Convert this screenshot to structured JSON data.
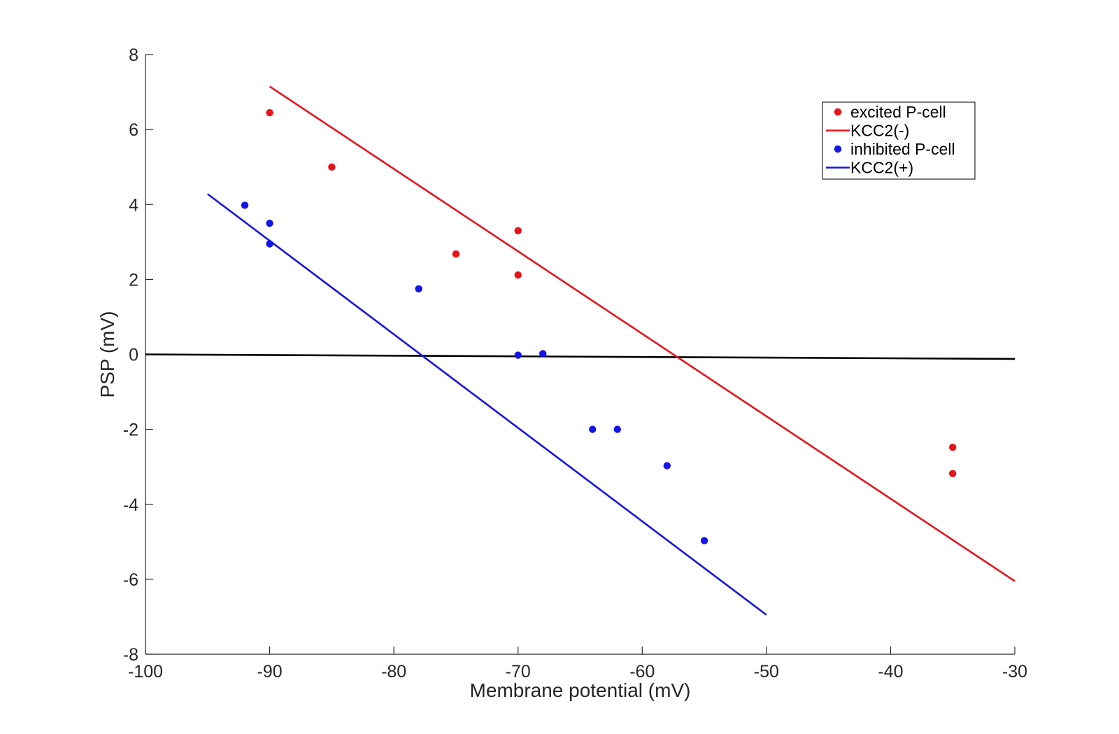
{
  "chart_data": {
    "type": "scatter",
    "xlabel": "Membrane potential (mV)",
    "ylabel": "PSP (mV)",
    "xlim": [
      -100,
      -30
    ],
    "ylim": [
      -8,
      8
    ],
    "xticks": [
      "-100",
      "-90",
      "-80",
      "-70",
      "-60",
      "-50",
      "-40",
      "-30"
    ],
    "yticks": [
      "-8",
      "-6",
      "-4",
      "-2",
      "0",
      "2",
      "4",
      "6",
      "8"
    ],
    "legend_position": "top-right",
    "series": [
      {
        "name": "excited P-cell",
        "kind": "points",
        "color": "#e8141b",
        "points": [
          [
            -90,
            6.45
          ],
          [
            -85,
            5.0
          ],
          [
            -75,
            2.68
          ],
          [
            -70,
            3.3
          ],
          [
            -70,
            2.12
          ],
          [
            -35,
            -2.48
          ],
          [
            -35,
            -3.18
          ]
        ]
      },
      {
        "name": "KCC2(-)",
        "kind": "line",
        "color": "#e8141b",
        "points": [
          [
            -90,
            7.15
          ],
          [
            -30,
            -6.05
          ]
        ]
      },
      {
        "name": "inhibited P-cell",
        "kind": "points",
        "color": "#1414e6",
        "points": [
          [
            -92,
            3.98
          ],
          [
            -90,
            3.5
          ],
          [
            -90,
            2.95
          ],
          [
            -78,
            1.75
          ],
          [
            -70,
            -0.02
          ],
          [
            -68,
            0.02
          ],
          [
            -64,
            -2.0
          ],
          [
            -62,
            -2.0
          ],
          [
            -58,
            -2.97
          ],
          [
            -55,
            -4.97
          ]
        ]
      },
      {
        "name": "KCC2(+)",
        "kind": "line",
        "color": "#1414e6",
        "points": [
          [
            -95,
            4.28
          ],
          [
            -50,
            -6.95
          ]
        ]
      }
    ],
    "reference_line": {
      "color": "#000000",
      "points": [
        [
          -100,
          0.0
        ],
        [
          -30,
          -0.12
        ]
      ]
    }
  }
}
